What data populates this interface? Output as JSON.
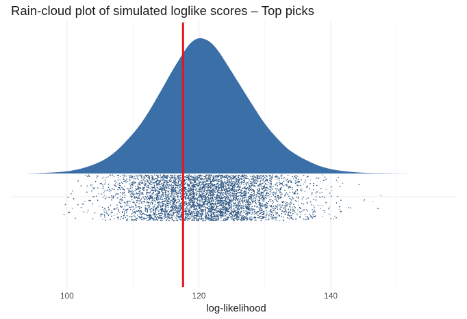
{
  "chart_data": {
    "type": "raincloud",
    "title": "Rain-cloud plot of simulated loglike scores – Top picks",
    "xlabel": "log-likelihood",
    "ylabel": "",
    "xlim": [
      91.5,
      159
    ],
    "x_ticks": [
      100,
      120,
      140
    ],
    "x_minor_ticks": [
      110,
      130,
      150
    ],
    "grid": true,
    "legend": "none",
    "density": {
      "x": [
        94,
        100,
        104,
        107,
        110,
        112,
        114,
        116,
        118,
        119,
        120,
        121,
        122,
        123,
        124,
        126,
        128,
        130,
        132,
        134,
        137,
        140,
        144,
        148,
        152
      ],
      "y": [
        0.0,
        0.002,
        0.008,
        0.018,
        0.036,
        0.052,
        0.072,
        0.093,
        0.112,
        0.119,
        0.122,
        0.121,
        0.117,
        0.11,
        0.101,
        0.082,
        0.063,
        0.045,
        0.031,
        0.02,
        0.01,
        0.004,
        0.001,
        0.0003,
        0.0
      ]
    },
    "points": {
      "count": 12000,
      "center": 121,
      "spread": 7.3,
      "min": 99.5,
      "max": 150.5
    },
    "reference_line": {
      "x": 117.6,
      "color": "#e8141d"
    },
    "colors": {
      "cloud": "#3b6fa8",
      "rain": "#2c5581",
      "grid": "#ebebeb"
    }
  }
}
